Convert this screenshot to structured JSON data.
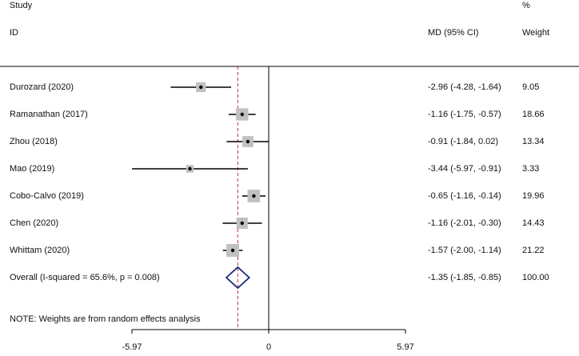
{
  "header": {
    "study_label": "Study",
    "id_label": "ID",
    "md_label": "MD (95% CI)",
    "pct_label": "%",
    "weight_label": "Weight"
  },
  "note": "NOTE: Weights are from random effects analysis",
  "chart_data": {
    "type": "forest",
    "xlim": [
      -5.97,
      5.97
    ],
    "xticks": [
      -5.97,
      0,
      5.97
    ],
    "xtick_labels": [
      "-5.97",
      "0",
      "5.97"
    ],
    "null_line": 0,
    "studies": [
      {
        "label": "Durozard (2020)",
        "md": -2.96,
        "lo": -4.28,
        "hi": -1.64,
        "ci_text": "-2.96 (-4.28, -1.64)",
        "weight": 9.05,
        "weight_text": "9.05"
      },
      {
        "label": "Ramanathan (2017)",
        "md": -1.16,
        "lo": -1.75,
        "hi": -0.57,
        "ci_text": "-1.16 (-1.75, -0.57)",
        "weight": 18.66,
        "weight_text": "18.66"
      },
      {
        "label": "Zhou (2018)",
        "md": -0.91,
        "lo": -1.84,
        "hi": 0.02,
        "ci_text": "-0.91 (-1.84, 0.02)",
        "weight": 13.34,
        "weight_text": "13.34"
      },
      {
        "label": "Mao (2019)",
        "md": -3.44,
        "lo": -5.97,
        "hi": -0.91,
        "ci_text": "-3.44 (-5.97, -0.91)",
        "weight": 3.33,
        "weight_text": "3.33"
      },
      {
        "label": "Cobo-Calvo (2019)",
        "md": -0.65,
        "lo": -1.16,
        "hi": -0.14,
        "ci_text": "-0.65 (-1.16, -0.14)",
        "weight": 19.96,
        "weight_text": "19.96"
      },
      {
        "label": "Chen (2020)",
        "md": -1.16,
        "lo": -2.01,
        "hi": -0.3,
        "ci_text": "-1.16 (-2.01, -0.30)",
        "weight": 14.43,
        "weight_text": "14.43"
      },
      {
        "label": "Whittam (2020)",
        "md": -1.57,
        "lo": -2.0,
        "hi": -1.14,
        "ci_text": "-1.57 (-2.00, -1.14)",
        "weight": 21.22,
        "weight_text": "21.22"
      }
    ],
    "overall": {
      "label": "Overall  (I-squared = 65.6%, p = 0.008)",
      "md": -1.35,
      "lo": -1.85,
      "hi": -0.85,
      "ci_text": "-1.35 (-1.85, -0.85)",
      "weight": 100.0,
      "weight_text": "100.00"
    },
    "colors": {
      "box": "#c0c0c0",
      "ci_line": "#000000",
      "overall_line": "#b03050",
      "diamond": "#1c2a7a"
    }
  }
}
